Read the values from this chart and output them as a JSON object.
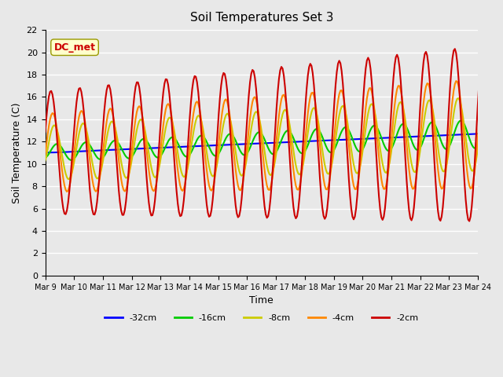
{
  "title": "Soil Temperatures Set 3",
  "xlabel": "Time",
  "ylabel": "Soil Temperature (C)",
  "ylim": [
    0,
    22
  ],
  "annotation": "DC_met",
  "bg_color": "#e8e8e8",
  "grid_color": "#ffffff",
  "tick_labels": [
    "Mar 9",
    "Mar 10",
    "Mar 11",
    "Mar 12",
    "Mar 13",
    "Mar 14",
    "Mar 15",
    "Mar 16",
    "Mar 17",
    "Mar 18",
    "Mar 19",
    "Mar 20",
    "Mar 21",
    "Mar 22",
    "Mar 23",
    "Mar 24"
  ],
  "series": [
    {
      "label": "-32cm",
      "color": "#0000ff",
      "linewidth": 1.5
    },
    {
      "label": "-16cm",
      "color": "#00cc00",
      "linewidth": 1.5
    },
    {
      "label": "-8cm",
      "color": "#cccc00",
      "linewidth": 1.5
    },
    {
      "label": "-4cm",
      "color": "#ff8800",
      "linewidth": 1.5
    },
    {
      "label": "-2cm",
      "color": "#cc0000",
      "linewidth": 1.5
    }
  ]
}
